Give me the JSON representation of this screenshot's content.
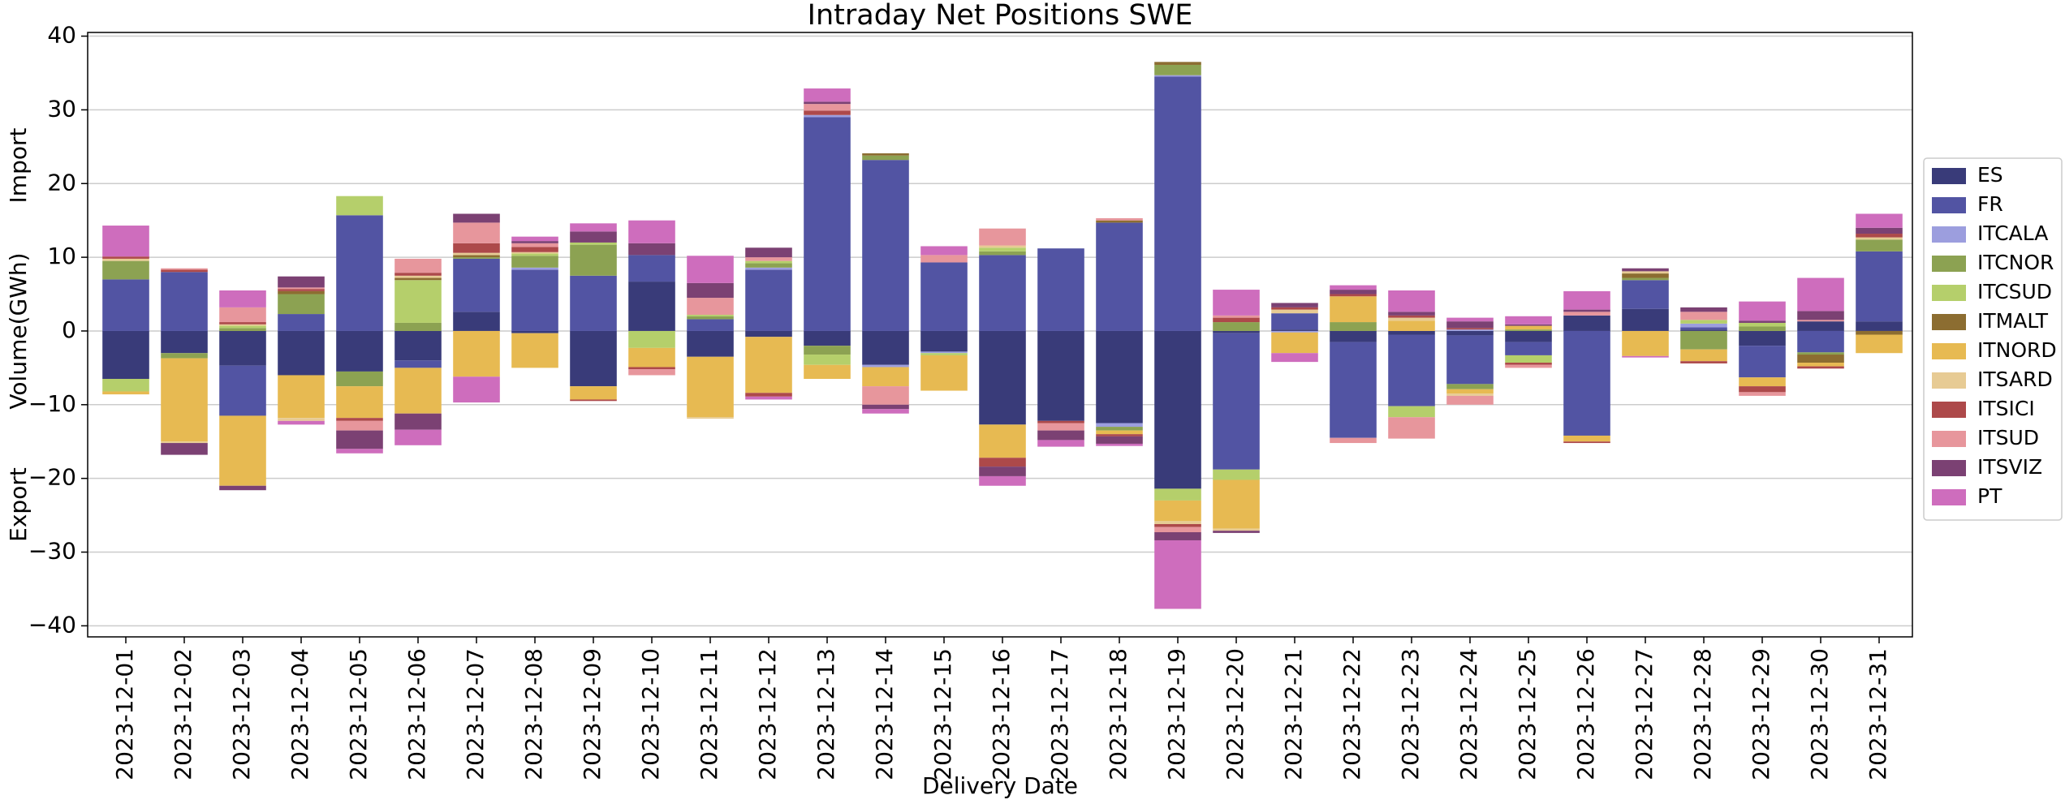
{
  "chart_data": {
    "type": "stacked_bar",
    "title": "Intraday Net Positions SWE",
    "xlabel": "Delivery Date",
    "ylabel": "Volume(GWh)",
    "annotations": [
      "Import",
      "Export"
    ],
    "categories": [
      "2023-12-01",
      "2023-12-02",
      "2023-12-03",
      "2023-12-04",
      "2023-12-05",
      "2023-12-06",
      "2023-12-07",
      "2023-12-08",
      "2023-12-09",
      "2023-12-10",
      "2023-12-11",
      "2023-12-12",
      "2023-12-13",
      "2023-12-14",
      "2023-12-15",
      "2023-12-16",
      "2023-12-17",
      "2023-12-18",
      "2023-12-19",
      "2023-12-20",
      "2023-12-21",
      "2023-12-22",
      "2023-12-23",
      "2023-12-24",
      "2023-12-25",
      "2023-12-26",
      "2023-12-27",
      "2023-12-28",
      "2023-12-29",
      "2023-12-30",
      "2023-12-31"
    ],
    "series": [
      {
        "name": "ES",
        "color": "#393b79",
        "values": [
          -6.5,
          -3,
          -4.7,
          -6,
          -5.5,
          -4,
          2.6,
          -0.3,
          -7.5,
          6.7,
          -3.5,
          -0.8,
          -2,
          -4.6,
          -2.8,
          -12.7,
          -12.2,
          -12.5,
          -21.4,
          -0.3,
          0.2,
          -1.5,
          -0.5,
          -0.6,
          -1.5,
          2.1,
          3,
          0.2,
          -2,
          1.3,
          1.3
        ]
      },
      {
        "name": "FR",
        "color": "#5254a3",
        "values": [
          7,
          8,
          -6.8,
          2.3,
          15.7,
          -1,
          7.2,
          8.3,
          7.5,
          3.6,
          1.6,
          8.3,
          29,
          23.2,
          9.3,
          10.3,
          11.2,
          14.7,
          34.5,
          -18.5,
          2.2,
          -13,
          -9.7,
          -6.6,
          -1.8,
          -14.2,
          3.9,
          0.3,
          -4.3,
          -2.9,
          9.5
        ]
      },
      {
        "name": "ITCALA",
        "color": "#9c9ede",
        "values": [
          0,
          0,
          0,
          0,
          0,
          0,
          0,
          0.3,
          0,
          0,
          0,
          0.3,
          0.3,
          -0.3,
          -0.2,
          0,
          0,
          -0.5,
          0.2,
          0,
          -0.2,
          0,
          0,
          0.2,
          0,
          0,
          0,
          0.5,
          0,
          0,
          0
        ]
      },
      {
        "name": "ITCNOR",
        "color": "#8ca252",
        "values": [
          2.5,
          -0.7,
          0.4,
          2.7,
          -2,
          1.1,
          0.2,
          1.6,
          4.2,
          0,
          0.4,
          0.6,
          -1.2,
          0.6,
          0,
          0.5,
          0,
          -0.5,
          1.4,
          1.2,
          0,
          1.2,
          0,
          -0.7,
          0.2,
          0,
          0.3,
          -2.5,
          0.6,
          -0.3,
          1.6
        ]
      },
      {
        "name": "ITCSUD",
        "color": "#b5cf6b",
        "values": [
          -1.7,
          0,
          0.3,
          0,
          2.6,
          5.8,
          0,
          0.3,
          0.3,
          -2.3,
          0.2,
          0.3,
          -1.4,
          0,
          -0.3,
          0.5,
          0,
          0,
          -1.6,
          -1.4,
          0,
          0,
          -1.5,
          0,
          -1,
          0,
          0,
          0.5,
          0.5,
          0,
          0
        ]
      },
      {
        "name": "ITMALT",
        "color": "#8c6d31",
        "values": [
          0,
          0,
          0,
          0.4,
          0,
          0.3,
          0.3,
          0,
          0,
          0,
          0,
          0,
          0,
          0.3,
          0,
          0,
          0,
          0.3,
          0.4,
          0,
          0,
          0,
          0,
          0,
          0,
          0,
          0.6,
          0,
          0,
          -1.1,
          -0.5
        ]
      },
      {
        "name": "ITNORD",
        "color": "#e7ba52",
        "values": [
          -0.4,
          -11.3,
          -9.5,
          -5.8,
          -4.3,
          -6.2,
          -6.2,
          -4.7,
          -1.8,
          -2.6,
          -8.2,
          -7.6,
          -1.9,
          -2.6,
          -4.8,
          -4.5,
          0,
          -0.5,
          -2.8,
          -6.6,
          -2.8,
          3.5,
          1.4,
          -0.6,
          0.5,
          -0.8,
          -3.4,
          -1.6,
          -1.2,
          -0.5,
          -2.5
        ]
      },
      {
        "name": "ITSARD",
        "color": "#e7cb94",
        "values": [
          0.3,
          -0.2,
          0.2,
          -0.4,
          0,
          0.3,
          0.3,
          0.2,
          0,
          0,
          -0.2,
          0,
          0,
          0,
          0,
          0.3,
          0,
          0,
          -0.4,
          -0.3,
          0.5,
          0,
          0.4,
          -0.3,
          0,
          0,
          0.3,
          0,
          0,
          0,
          0.3
        ]
      },
      {
        "name": "ITSICI",
        "color": "#ad494a",
        "values": [
          0.3,
          0.3,
          0.3,
          0.3,
          -0.4,
          0.4,
          1.3,
          0.7,
          -0.2,
          -0.3,
          0,
          -0.5,
          0.6,
          0,
          0,
          -1.2,
          -0.3,
          -0.3,
          -0.4,
          0.6,
          0.3,
          0.3,
          0.3,
          0.2,
          -0.3,
          -0.2,
          0,
          -0.3,
          -0.8,
          -0.3,
          0.5
        ]
      },
      {
        "name": "ITSUD",
        "color": "#e7969c",
        "values": [
          0,
          0.2,
          2,
          0.2,
          -1.3,
          1.9,
          2.8,
          0.5,
          0,
          -0.8,
          2.3,
          0.5,
          0.9,
          -2.5,
          1,
          2.3,
          -1,
          0.3,
          -0.7,
          0.3,
          0,
          -0.7,
          -2.9,
          -1.2,
          -0.4,
          0.5,
          0,
          1.1,
          -0.5,
          0.2,
          0
        ]
      },
      {
        "name": "ITSVIZ",
        "color": "#7b4173",
        "values": [
          0,
          -1.6,
          -0.6,
          1.5,
          -2.5,
          -2.2,
          1.2,
          0.3,
          1.5,
          1.6,
          2,
          1.3,
          0.3,
          -0.6,
          0,
          -1.3,
          -1.3,
          -1,
          -1.1,
          -0.3,
          0.6,
          0.6,
          0.5,
          0.9,
          0.2,
          0.3,
          0.4,
          0.6,
          0.3,
          1.2,
          0.8
        ]
      },
      {
        "name": "PT",
        "color": "#ce6dbd",
        "values": [
          4.2,
          0,
          2.3,
          -0.5,
          -0.6,
          -2.1,
          -3.5,
          0.6,
          1.1,
          3.1,
          3.7,
          -0.4,
          1.8,
          -0.6,
          1.2,
          -1.3,
          -0.9,
          -0.3,
          -9.3,
          3.5,
          -1.2,
          0.6,
          2.9,
          0.5,
          1.1,
          2.5,
          -0.2,
          0,
          2.6,
          4.5,
          1.9
        ]
      }
    ],
    "ylim": [
      -41.5,
      40.5
    ],
    "yticks": [
      {
        "value": -40,
        "label": "−40"
      },
      {
        "value": -30,
        "label": "−30"
      },
      {
        "value": -20,
        "label": "−20"
      },
      {
        "value": -10,
        "label": "−10"
      },
      0,
      10,
      20,
      30,
      40
    ],
    "grid": true,
    "legend": "right"
  }
}
